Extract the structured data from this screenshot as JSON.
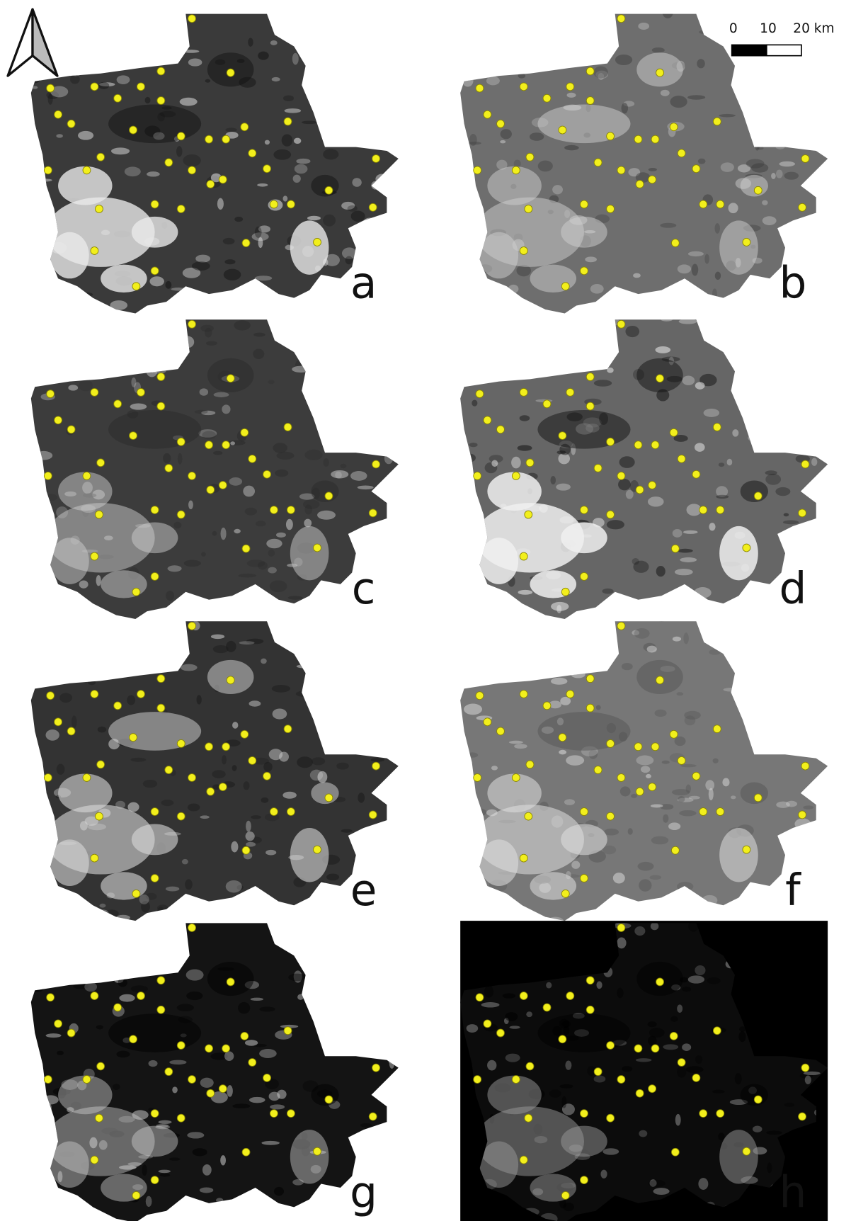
{
  "panels": {
    "labels": [
      "a",
      "b",
      "c",
      "d",
      "e",
      "f",
      "g",
      "h"
    ]
  },
  "scale_bar": {
    "labels": [
      "0",
      "10",
      "20 km"
    ]
  }
}
